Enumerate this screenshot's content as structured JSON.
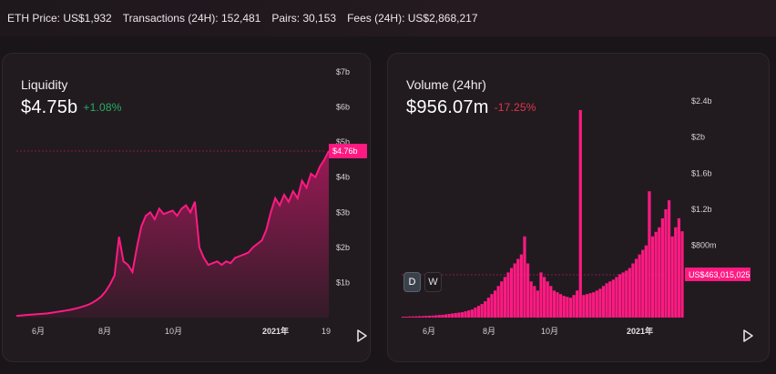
{
  "topbar": {
    "eth_price": "ETH Price: US$1,932",
    "transactions": "Transactions (24H): 152,481",
    "pairs": "Pairs: 30,153",
    "fees": "Fees (24H): US$2,868,217"
  },
  "liquidity": {
    "title": "Liquidity",
    "value": "$4.75b",
    "change": "+1.08%",
    "price_tag": "$4.76b",
    "y_ticks": [
      "$7b",
      "$6b",
      "$5b",
      "$4b",
      "$3b",
      "$2b",
      "$1b"
    ],
    "x_ticks": [
      "6月",
      "8月",
      "10月",
      "2021年",
      "19"
    ],
    "colors": {
      "line": "#ff1a82",
      "tag": "#ff1a82",
      "positive": "#27ae60"
    }
  },
  "volume": {
    "title": "Volume (24hr)",
    "value": "$956.07m",
    "change": "-17.25%",
    "price_tag": "US$463,015,025",
    "y_ticks": [
      "$2.4b",
      "$2b",
      "$1.6b",
      "$1.2b",
      "$800m"
    ],
    "x_ticks": [
      "6月",
      "8月",
      "10月",
      "2021年"
    ],
    "buttons": {
      "day": "D",
      "week": "W"
    },
    "colors": {
      "bar": "#ff1a82",
      "negative": "#e0364a"
    }
  },
  "icons": {
    "play": "play-icon"
  },
  "chart_data": [
    {
      "type": "area",
      "title": "Liquidity",
      "x_labels": [
        "6月",
        "8月",
        "10月",
        "2021年",
        "19"
      ],
      "ylim": [
        0,
        7000000000
      ],
      "y_unit": "USD",
      "series": [
        {
          "values_b": [
            0.05,
            0.06,
            0.07,
            0.08,
            0.09,
            0.1,
            0.11,
            0.12,
            0.14,
            0.16,
            0.18,
            0.2,
            0.22,
            0.25,
            0.28,
            0.32,
            0.36,
            0.42,
            0.5,
            0.6,
            0.75,
            0.95,
            1.2,
            2.3,
            1.6,
            1.5,
            1.3,
            2.0,
            2.6,
            2.9,
            3.0,
            2.8,
            3.1,
            2.95,
            3.0,
            3.05,
            2.9,
            3.1,
            3.2,
            3.0,
            3.3,
            2.0,
            1.7,
            1.5,
            1.55,
            1.6,
            1.5,
            1.6,
            1.55,
            1.7,
            1.75,
            1.8,
            1.85,
            2.0,
            2.1,
            2.2,
            2.5,
            3.0,
            3.4,
            3.2,
            3.5,
            3.3,
            3.6,
            3.4,
            3.9,
            3.7,
            4.1,
            4.0,
            4.3,
            4.5,
            4.75
          ]
        }
      ]
    },
    {
      "type": "bar",
      "title": "Volume (24hr)",
      "x_labels": [
        "6月",
        "8月",
        "10月",
        "2021年"
      ],
      "ylim": [
        0,
        2400000000
      ],
      "y_unit": "USD",
      "series": [
        {
          "values_m": [
            10,
            10,
            12,
            12,
            14,
            15,
            16,
            18,
            20,
            22,
            25,
            28,
            30,
            35,
            40,
            45,
            50,
            55,
            60,
            70,
            80,
            90,
            110,
            130,
            150,
            180,
            220,
            260,
            300,
            350,
            400,
            450,
            500,
            550,
            600,
            650,
            700,
            900,
            600,
            400,
            350,
            300,
            500,
            450,
            400,
            350,
            300,
            280,
            260,
            240,
            230,
            220,
            250,
            300,
            2300,
            250,
            260,
            270,
            280,
            300,
            320,
            350,
            380,
            400,
            420,
            450,
            480,
            500,
            520,
            550,
            600,
            650,
            700,
            750,
            800,
            1400,
            900,
            950,
            1000,
            1100,
            1200,
            1300,
            900,
            1000,
            1100,
            956
          ]
        }
      ]
    }
  ]
}
